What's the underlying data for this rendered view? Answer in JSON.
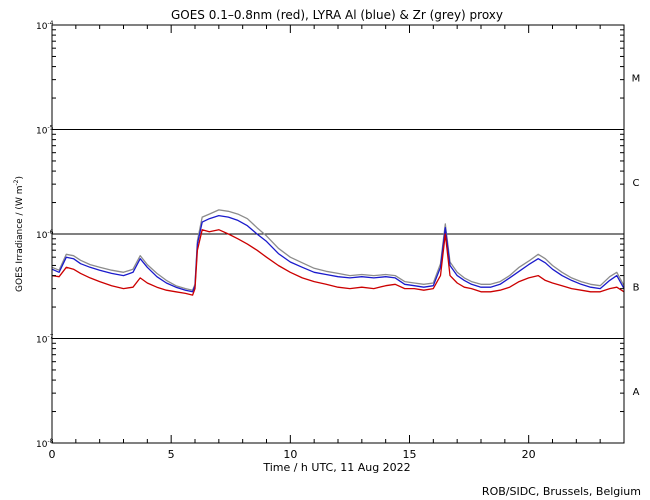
{
  "chart_data": {
    "type": "line",
    "title": "GOES 0.1–0.8nm (red), LYRA Al (blue) & Zr (grey) proxy",
    "xlabel": "Time / h UTC, 11 Aug 2022",
    "ylabel_main": "GOES Irradiance / (W m",
    "ylabel_sup": "-2",
    "ylabel_end": ")",
    "xlim": [
      0,
      24
    ],
    "ylim_log10": [
      -8,
      -4
    ],
    "y_scale": "log",
    "x_ticks": [
      {
        "value": 0,
        "label": "0"
      },
      {
        "value": 5,
        "label": "5"
      },
      {
        "value": 10,
        "label": "10"
      },
      {
        "value": 15,
        "label": "15"
      },
      {
        "value": 20,
        "label": "20"
      }
    ],
    "y_ticks": [
      {
        "exp": -8,
        "base": "10",
        "sup": "-8"
      },
      {
        "exp": -7,
        "base": "10",
        "sup": "-7"
      },
      {
        "exp": -6,
        "base": "10",
        "sup": "-6"
      },
      {
        "exp": -5,
        "base": "10",
        "sup": "-5"
      },
      {
        "exp": -4,
        "base": "10",
        "sup": "-4"
      }
    ],
    "flare_class_lines": [
      -7,
      -6,
      -5
    ],
    "flare_classes": [
      {
        "label": "A",
        "log10": -7.5
      },
      {
        "label": "B",
        "log10": -6.5
      },
      {
        "label": "C",
        "log10": -5.5
      },
      {
        "label": "M",
        "log10": -4.5
      }
    ],
    "series": [
      {
        "color": "#cc0000",
        "x": [
          0,
          0.3,
          0.6,
          0.9,
          1.2,
          1.6,
          2.0,
          2.5,
          3.0,
          3.4,
          3.7,
          4.0,
          4.4,
          4.8,
          5.2,
          5.6,
          5.9,
          6.0,
          6.1,
          6.3,
          6.6,
          7.0,
          7.4,
          7.8,
          8.2,
          8.6,
          9.0,
          9.5,
          10,
          10.5,
          11,
          11.5,
          12,
          12.5,
          13,
          13.5,
          14,
          14.4,
          14.8,
          15.2,
          15.6,
          16.0,
          16.3,
          16.5,
          16.7,
          17.0,
          17.3,
          17.6,
          18,
          18.4,
          18.8,
          19.2,
          19.6,
          20.0,
          20.4,
          20.7,
          21.0,
          21.4,
          21.8,
          22.2,
          22.6,
          23.0,
          23.4,
          23.7,
          24
        ],
        "y": [
          4e-07,
          3.9e-07,
          4.8e-07,
          4.6e-07,
          4.2e-07,
          3.8e-07,
          3.5e-07,
          3.2e-07,
          3e-07,
          3.1e-07,
          3.8e-07,
          3.4e-07,
          3.1e-07,
          2.9e-07,
          2.8e-07,
          2.7e-07,
          2.6e-07,
          3e-07,
          7e-07,
          1.1e-06,
          1.05e-06,
          1.1e-06,
          1e-06,
          9e-07,
          8e-07,
          7e-07,
          6e-07,
          5e-07,
          4.3e-07,
          3.8e-07,
          3.5e-07,
          3.3e-07,
          3.1e-07,
          3e-07,
          3.1e-07,
          3e-07,
          3.2e-07,
          3.3e-07,
          3e-07,
          3e-07,
          2.9e-07,
          3e-07,
          4e-07,
          1e-06,
          4e-07,
          3.4e-07,
          3.1e-07,
          3e-07,
          2.8e-07,
          2.8e-07,
          2.9e-07,
          3.1e-07,
          3.5e-07,
          3.8e-07,
          4e-07,
          3.6e-07,
          3.4e-07,
          3.2e-07,
          3e-07,
          2.9e-07,
          2.8e-07,
          2.8e-07,
          3e-07,
          3.1e-07,
          2.8e-07
        ]
      },
      {
        "color": "#1a1acc",
        "x": [
          0,
          0.3,
          0.6,
          0.9,
          1.2,
          1.6,
          2.0,
          2.5,
          3.0,
          3.4,
          3.7,
          4.0,
          4.4,
          4.8,
          5.2,
          5.6,
          5.9,
          6.0,
          6.1,
          6.3,
          6.6,
          7.0,
          7.4,
          7.8,
          8.2,
          8.6,
          9.0,
          9.5,
          10,
          10.5,
          11,
          11.5,
          12,
          12.5,
          13,
          13.5,
          14,
          14.4,
          14.8,
          15.2,
          15.6,
          16.0,
          16.3,
          16.5,
          16.7,
          17.0,
          17.3,
          17.6,
          18,
          18.4,
          18.8,
          19.2,
          19.6,
          20.0,
          20.4,
          20.7,
          21.0,
          21.4,
          21.8,
          22.2,
          22.6,
          23.0,
          23.4,
          23.7,
          24
        ],
        "y": [
          4.6e-07,
          4.3e-07,
          6e-07,
          5.8e-07,
          5.2e-07,
          4.8e-07,
          4.5e-07,
          4.2e-07,
          4e-07,
          4.3e-07,
          5.8e-07,
          4.8e-07,
          3.9e-07,
          3.4e-07,
          3.1e-07,
          2.9e-07,
          2.8e-07,
          3.2e-07,
          8e-07,
          1.3e-06,
          1.4e-06,
          1.5e-06,
          1.45e-06,
          1.35e-06,
          1.2e-06,
          1e-06,
          8.5e-07,
          6.5e-07,
          5.4e-07,
          4.8e-07,
          4.3e-07,
          4.1e-07,
          3.9e-07,
          3.8e-07,
          3.9e-07,
          3.8e-07,
          3.9e-07,
          3.8e-07,
          3.3e-07,
          3.2e-07,
          3.1e-07,
          3.2e-07,
          4.8e-07,
          1.15e-06,
          5e-07,
          4e-07,
          3.6e-07,
          3.3e-07,
          3.1e-07,
          3.1e-07,
          3.3e-07,
          3.8e-07,
          4.4e-07,
          5.1e-07,
          5.8e-07,
          5.3e-07,
          4.6e-07,
          4e-07,
          3.6e-07,
          3.3e-07,
          3.1e-07,
          3e-07,
          3.6e-07,
          4e-07,
          3e-07
        ]
      },
      {
        "color": "#8c8c8c",
        "x": [
          0,
          0.3,
          0.6,
          0.9,
          1.2,
          1.6,
          2.0,
          2.5,
          3.0,
          3.4,
          3.7,
          4.0,
          4.4,
          4.8,
          5.2,
          5.6,
          5.9,
          6.0,
          6.1,
          6.3,
          6.6,
          7.0,
          7.4,
          7.8,
          8.2,
          8.6,
          9.0,
          9.5,
          10,
          10.5,
          11,
          11.5,
          12,
          12.5,
          13,
          13.5,
          14,
          14.4,
          14.8,
          15.2,
          15.6,
          16.0,
          16.3,
          16.5,
          16.7,
          17.0,
          17.3,
          17.6,
          18,
          18.4,
          18.8,
          19.2,
          19.6,
          20.0,
          20.4,
          20.7,
          21.0,
          21.4,
          21.8,
          22.2,
          22.6,
          23.0,
          23.4,
          23.7,
          24
        ],
        "y": [
          4.8e-07,
          4.5e-07,
          6.4e-07,
          6.2e-07,
          5.6e-07,
          5.1e-07,
          4.8e-07,
          4.5e-07,
          4.3e-07,
          4.6e-07,
          6.2e-07,
          5.1e-07,
          4.2e-07,
          3.6e-07,
          3.2e-07,
          3e-07,
          2.9e-07,
          3.3e-07,
          8.6e-07,
          1.45e-06,
          1.55e-06,
          1.7e-06,
          1.65e-06,
          1.55e-06,
          1.4e-06,
          1.15e-06,
          9.6e-07,
          7.3e-07,
          6e-07,
          5.3e-07,
          4.7e-07,
          4.4e-07,
          4.2e-07,
          4e-07,
          4.1e-07,
          4e-07,
          4.1e-07,
          4e-07,
          3.5e-07,
          3.4e-07,
          3.3e-07,
          3.4e-07,
          5.2e-07,
          1.25e-06,
          5.4e-07,
          4.3e-07,
          3.8e-07,
          3.5e-07,
          3.3e-07,
          3.3e-07,
          3.5e-07,
          4e-07,
          4.8e-07,
          5.5e-07,
          6.4e-07,
          5.8e-07,
          5e-07,
          4.3e-07,
          3.8e-07,
          3.5e-07,
          3.3e-07,
          3.2e-07,
          3.9e-07,
          4.3e-07,
          3.2e-07
        ]
      }
    ]
  },
  "footer": {
    "credit": "ROB/SIDC, Brussels, Belgium"
  }
}
